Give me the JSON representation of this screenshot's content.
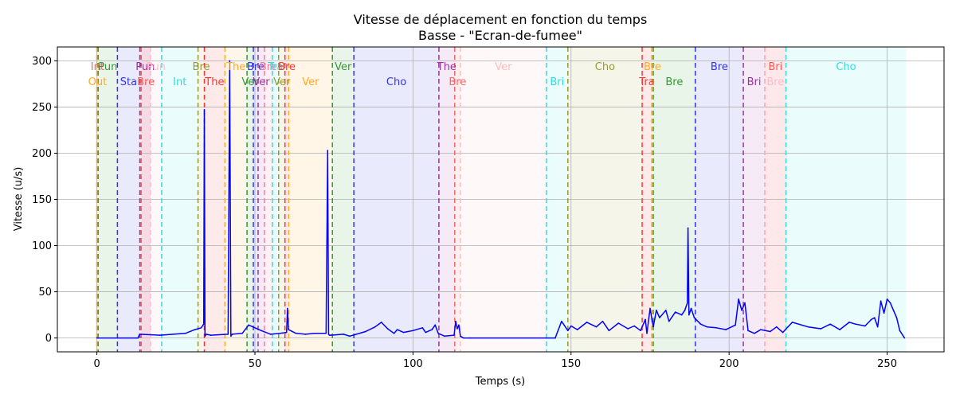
{
  "chart_data": {
    "type": "line",
    "title": "Vitesse de déplacement en fonction du temps",
    "subtitle": "Basse - \"Ecran-de-fumee\"",
    "xlabel": "Temps (s)",
    "ylabel": "Vitesse (u/s)",
    "xlim": [
      -12.5,
      268
    ],
    "ylim": [
      -15,
      315
    ],
    "xticks": [
      0,
      50,
      100,
      150,
      200,
      250
    ],
    "yticks": [
      0,
      50,
      100,
      150,
      200,
      250,
      300
    ],
    "grid": true,
    "series": [
      {
        "name": "Vitesse",
        "color": "#0000ff",
        "x": [
          0,
          13,
          13.5,
          20,
          28,
          31,
          33,
          33.8,
          34,
          34.2,
          34.6,
          36,
          41.5,
          42,
          42.4,
          42.8,
          46,
          48,
          52,
          55,
          58,
          60,
          60.3,
          60.6,
          63,
          66,
          69,
          72.5,
          73,
          73.3,
          73.6,
          74,
          78,
          80,
          85,
          88,
          90,
          92,
          94,
          95,
          97,
          100,
          103,
          104,
          106,
          107,
          108,
          110,
          113,
          113.5,
          114,
          114.5,
          115,
          116,
          118,
          142,
          145,
          147,
          149,
          150,
          152,
          155,
          158,
          160,
          162,
          165,
          168,
          170,
          172,
          173.5,
          174,
          175,
          176,
          177,
          178,
          180,
          181,
          183,
          185,
          186,
          186.8,
          187,
          187.3,
          188,
          189,
          191,
          193,
          196,
          199,
          202,
          203,
          204,
          205,
          206,
          208,
          210,
          213,
          215,
          217,
          220,
          225,
          229,
          232,
          235,
          238,
          240,
          243,
          245,
          246,
          247,
          248,
          249,
          250,
          251,
          252,
          253,
          254,
          255.5
        ],
        "values": [
          0,
          0,
          4,
          3,
          5,
          9,
          11,
          15,
          247,
          2,
          4,
          3,
          4,
          300,
          2,
          4,
          5,
          14,
          8,
          4,
          5,
          6,
          32,
          9,
          5,
          4,
          5,
          5,
          203,
          4,
          3,
          3,
          4,
          2,
          7,
          12,
          17,
          10,
          5,
          9,
          6,
          8,
          11,
          6,
          9,
          14,
          5,
          2,
          3,
          18,
          10,
          14,
          2,
          0,
          0,
          0,
          0,
          18,
          8,
          13,
          9,
          17,
          12,
          18,
          8,
          16,
          10,
          13,
          8,
          20,
          5,
          32,
          12,
          30,
          22,
          30,
          18,
          28,
          25,
          30,
          38,
          119,
          25,
          32,
          22,
          15,
          12,
          11,
          9,
          14,
          42,
          30,
          38,
          8,
          5,
          9,
          7,
          12,
          6,
          17,
          12,
          10,
          15,
          9,
          17,
          15,
          13,
          20,
          22,
          12,
          40,
          27,
          42,
          38,
          30,
          22,
          8,
          0
        ]
      }
    ],
    "sections": [
      {
        "start": 0,
        "end": 0.4,
        "label": "Int",
        "color": "#ff6666",
        "row": 0
      },
      {
        "start": 0.4,
        "end": 6.5,
        "label": "Pun",
        "color": "#339933",
        "row": 0
      },
      {
        "start": 0,
        "end": 0.4,
        "label": "Out",
        "color": "#ffaa22",
        "row": 1
      },
      {
        "start": 6.5,
        "end": 13.6,
        "label": "Sta",
        "color": "#3333ee",
        "row": 1
      },
      {
        "start": 13.6,
        "end": 17,
        "label": "Pun",
        "color": "#993399",
        "row": 0
      },
      {
        "start": 14,
        "end": 17,
        "label": "Bre",
        "color": "#ff5555",
        "row": 1
      },
      {
        "start": 17,
        "end": 20.5,
        "label": "Pun",
        "color": "#ffbbcc",
        "row": 0
      },
      {
        "start": 20.5,
        "end": 32,
        "label": "Int",
        "color": "#33dddd",
        "row": 1
      },
      {
        "start": 32,
        "end": 34,
        "label": "Bre",
        "color": "#999933",
        "row": 0
      },
      {
        "start": 34,
        "end": 40.5,
        "label": "The",
        "color": "#ff3333",
        "row": 1
      },
      {
        "start": 40.5,
        "end": 47.5,
        "label": "The",
        "color": "#ffaa33",
        "row": 0
      },
      {
        "start": 47.5,
        "end": 49.5,
        "label": "Ver",
        "color": "#339933",
        "row": 1
      },
      {
        "start": 49.5,
        "end": 51,
        "label": "Bre",
        "color": "#3333ee",
        "row": 0
      },
      {
        "start": 51,
        "end": 53,
        "label": "Ver",
        "color": "#993399",
        "row": 1
      },
      {
        "start": 53,
        "end": 55.5,
        "label": "Bre",
        "color": "#ff7799",
        "row": 0
      },
      {
        "start": 55.5,
        "end": 57.5,
        "label": "Tra",
        "color": "#33dddd",
        "row": 0
      },
      {
        "start": 57.5,
        "end": 59.5,
        "label": "Ver",
        "color": "#999933",
        "row": 1
      },
      {
        "start": 59.5,
        "end": 60.7,
        "label": "Bre",
        "color": "#ff3333",
        "row": 0
      },
      {
        "start": 60.7,
        "end": 74.5,
        "label": "Ver",
        "color": "#ffaa22",
        "row": 1
      },
      {
        "start": 74.5,
        "end": 81.3,
        "label": "Ver",
        "color": "#339933",
        "row": 0
      },
      {
        "start": 81.3,
        "end": 108.2,
        "label": "Cho",
        "color": "#3333ee",
        "row": 1
      },
      {
        "start": 108.2,
        "end": 113.2,
        "label": "The",
        "color": "#993399",
        "row": 0
      },
      {
        "start": 113.2,
        "end": 115,
        "label": "Bre",
        "color": "#ff6666",
        "row": 1
      },
      {
        "start": 115,
        "end": 142.2,
        "label": "Ver",
        "color": "#ffbbbb",
        "row": 0
      },
      {
        "start": 142.2,
        "end": 149,
        "label": "Bri",
        "color": "#33dddd",
        "row": 1
      },
      {
        "start": 149,
        "end": 172.5,
        "label": "Cho",
        "color": "#999933",
        "row": 0
      },
      {
        "start": 172.5,
        "end": 175.5,
        "label": "Tra",
        "color": "#ff3333",
        "row": 1
      },
      {
        "start": 175.5,
        "end": 176,
        "label": "Bre",
        "color": "#ffaa22",
        "row": 0
      },
      {
        "start": 176,
        "end": 189.3,
        "label": "Bre",
        "color": "#339933",
        "row": 1
      },
      {
        "start": 189.3,
        "end": 204.5,
        "label": "Bre",
        "color": "#3333ee",
        "row": 0
      },
      {
        "start": 204.5,
        "end": 211.3,
        "label": "Bri",
        "color": "#993399",
        "row": 1
      },
      {
        "start": 211.3,
        "end": 218,
        "label": "Bri",
        "color": "#ff5555",
        "row": 0
      },
      {
        "start": 211.3,
        "end": 218,
        "label": "Bre",
        "color": "#ffbbcc",
        "row": 1
      },
      {
        "start": 218,
        "end": 256,
        "label": "Cho",
        "color": "#33dddd",
        "row": 0
      }
    ]
  }
}
